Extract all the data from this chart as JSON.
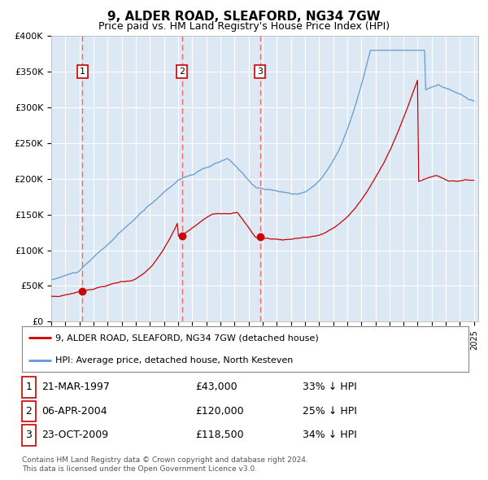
{
  "title": "9, ALDER ROAD, SLEAFORD, NG34 7GW",
  "subtitle": "Price paid vs. HM Land Registry's House Price Index (HPI)",
  "title_fontsize": 11,
  "subtitle_fontsize": 9,
  "background_color": "#dce9f5",
  "plot_bg_color": "#dce9f5",
  "fig_bg_color": "#ffffff",
  "ylim": [
    0,
    400000
  ],
  "yticks": [
    0,
    50000,
    100000,
    150000,
    200000,
    250000,
    300000,
    350000,
    400000
  ],
  "ytick_labels": [
    "£0",
    "£50K",
    "£100K",
    "£150K",
    "£200K",
    "£250K",
    "£300K",
    "£350K",
    "£400K"
  ],
  "year_start": 1995,
  "year_end": 2025,
  "red_line_color": "#cc0000",
  "blue_line_color": "#6699cc",
  "sale_marker_color": "#cc0000",
  "sale_dates": [
    1997.22,
    2004.27,
    2009.81
  ],
  "sale_prices": [
    43000,
    120000,
    118500
  ],
  "sale_labels": [
    "1",
    "2",
    "3"
  ],
  "legend_red": "9, ALDER ROAD, SLEAFORD, NG34 7GW (detached house)",
  "legend_blue": "HPI: Average price, detached house, North Kesteven",
  "table_rows": [
    [
      "1",
      "21-MAR-1997",
      "£43,000",
      "33% ↓ HPI"
    ],
    [
      "2",
      "06-APR-2004",
      "£120,000",
      "25% ↓ HPI"
    ],
    [
      "3",
      "23-OCT-2009",
      "£118,500",
      "34% ↓ HPI"
    ]
  ],
  "footnote": "Contains HM Land Registry data © Crown copyright and database right 2024.\nThis data is licensed under the Open Government Licence v3.0.",
  "grid_color": "#ffffff",
  "dashed_line_color": "#ff6666"
}
